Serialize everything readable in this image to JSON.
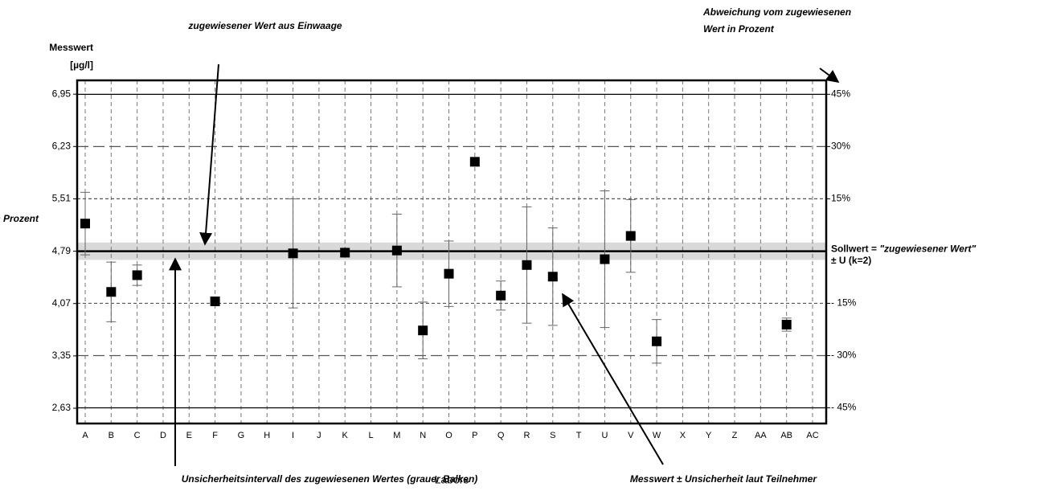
{
  "chart_data": {
    "type": "errorbar",
    "y_label": [
      "Messwert",
      "[µg/l]"
    ],
    "x_label": "Labors",
    "categories": [
      "A",
      "B",
      "C",
      "D",
      "E",
      "F",
      "G",
      "H",
      "I",
      "J",
      "K",
      "L",
      "M",
      "N",
      "O",
      "P",
      "Q",
      "R",
      "S",
      "T",
      "U",
      "V",
      "W",
      "X",
      "Y",
      "Z",
      "AA",
      "AB",
      "AC"
    ],
    "values": [
      5.17,
      4.23,
      4.46,
      null,
      null,
      4.1,
      null,
      null,
      4.76,
      null,
      4.77,
      null,
      4.8,
      3.7,
      4.48,
      6.02,
      4.18,
      4.6,
      4.44,
      null,
      4.68,
      5.0,
      3.55,
      null,
      null,
      null,
      null,
      3.78,
      null
    ],
    "errors": [
      0.43,
      0.41,
      0.14,
      null,
      null,
      null,
      null,
      null,
      0.75,
      null,
      null,
      null,
      0.5,
      0.39,
      0.45,
      null,
      0.2,
      0.8,
      0.67,
      null,
      0.94,
      0.5,
      0.3,
      null,
      null,
      null,
      null,
      0.09,
      null
    ],
    "color": "#000000",
    "ylim": [
      2.42,
      7.14
    ],
    "yticks": [
      {
        "value": 2.63,
        "label": "2,63"
      },
      {
        "value": 3.35,
        "label": "3,35"
      },
      {
        "value": 4.07,
        "label": "4,07"
      },
      {
        "value": 4.79,
        "label": "4,79"
      },
      {
        "value": 5.51,
        "label": "5,51"
      },
      {
        "value": 6.23,
        "label": "6,23"
      },
      {
        "value": 6.95,
        "label": "6,95"
      }
    ],
    "y2lim": [
      -49.5,
      49
    ],
    "y2ticks": [
      {
        "value": -45,
        "label": "- 45%"
      },
      {
        "value": -30,
        "label": "- 30%"
      },
      {
        "value": -15,
        "label": "- 15%"
      },
      {
        "value": 15,
        "label": "15%"
      },
      {
        "value": 30,
        "label": "30%"
      },
      {
        "value": 45,
        "label": "45%"
      }
    ],
    "reference": {
      "value": 4.79,
      "band": [
        4.67,
        4.91
      ],
      "label": [
        "Sollwert = ",
        "\"zugewiesener Wert\""
      ],
      "label2": "± U (k=2)"
    },
    "grid": true,
    "annotations": {
      "assigned": "zugewiesener Wert aus Einwaage",
      "deviation": [
        "Abweichung vom zugewiesenen",
        "Wert in Prozent"
      ],
      "left_cut": "in Prozent",
      "interval": "Unsicherheitsintervall des zugewiesenen Wertes (grauer Balken)",
      "measured": "Messwert ± Unsicherheit laut Teilnehmer"
    }
  }
}
